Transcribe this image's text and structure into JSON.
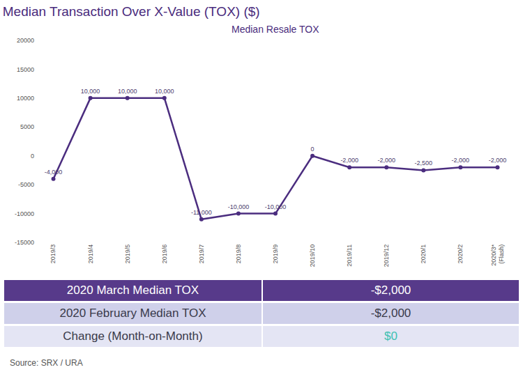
{
  "chart_data": {
    "type": "line",
    "title": "Median Transaction Over X-Value (TOX) ($)",
    "subtitle": "Median Resale TOX",
    "categories": [
      "2019/3",
      "2019/4",
      "2019/5",
      "2019/6",
      "2019/7",
      "2019/8",
      "2019/9",
      "2019/10",
      "2019/11",
      "2019/12",
      "2020/1",
      "2020/2",
      "2020/3*\n(Flash)"
    ],
    "values": [
      -4000,
      10000,
      10000,
      10000,
      -11000,
      -10000,
      -10000,
      0,
      -2000,
      -2000,
      -2500,
      -2000,
      -2000
    ],
    "value_labels": [
      "-4,000",
      "10,000",
      "10,000",
      "10,000",
      "-11,000",
      "-10,000",
      "-10,000",
      "0",
      "-2,000",
      "-2,000",
      "-2,500",
      "-2,000",
      "-2,000"
    ],
    "color": "#4b2d7f",
    "ylim": [
      -15000,
      20000
    ],
    "yticks": [
      -15000,
      -10000,
      -5000,
      0,
      5000,
      10000,
      15000,
      20000
    ],
    "grid": false,
    "data_labels": true,
    "marker": "circle",
    "line_style": "solid"
  },
  "table": {
    "rows": [
      [
        "2020 March Median TOX",
        "-$2,000"
      ],
      [
        "2020 February Median TOX",
        "-$2,000"
      ],
      [
        "Change (Month-on-Month)",
        "$0"
      ]
    ]
  },
  "source": "Source: SRX / URA"
}
